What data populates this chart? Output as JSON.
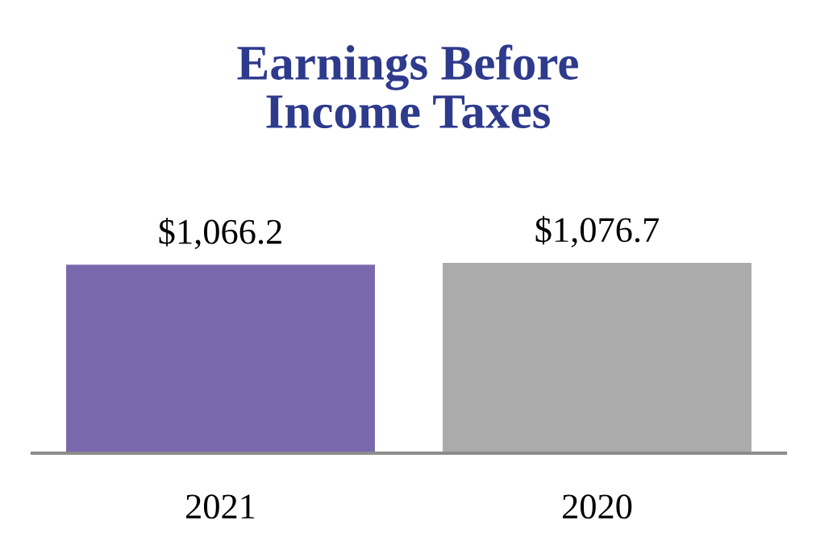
{
  "chart_data": {
    "type": "bar",
    "title": "Earnings Before\nIncome Taxes",
    "categories": [
      "2021",
      "2020"
    ],
    "values": [
      1066.2,
      1076.7
    ],
    "colors": [
      "#7a68ad",
      "#ababab"
    ],
    "value_labels": [
      "$1,066.2",
      "$1,076.7"
    ],
    "grid": false,
    "legend": false
  }
}
